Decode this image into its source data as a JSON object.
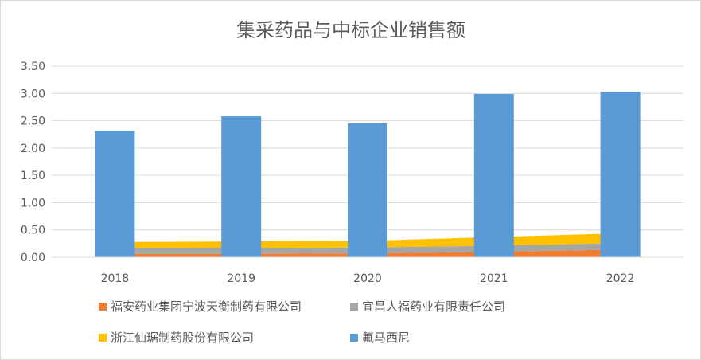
{
  "chart_data": {
    "type": "bar-area-combo",
    "title": "集采药品与中标企业销售额",
    "xlabel": "",
    "ylabel": "",
    "categories": [
      "2018",
      "2019",
      "2020",
      "2021",
      "2022"
    ],
    "ylim": [
      0,
      3.5
    ],
    "yticks": [
      "0.00",
      "0.50",
      "1.00",
      "1.50",
      "2.00",
      "2.50",
      "3.00",
      "3.50"
    ],
    "grid": true,
    "legend_position": "bottom",
    "series": [
      {
        "name": "福安药业集团宁波天衡制药有限公司",
        "type": "stacked-area",
        "color": "#ED7D31",
        "values": [
          0.06,
          0.06,
          0.07,
          0.1,
          0.14
        ]
      },
      {
        "name": "宜昌人福药业有限责任公司",
        "type": "stacked-area",
        "color": "#A5A5A5",
        "values": [
          0.1,
          0.11,
          0.11,
          0.11,
          0.12
        ]
      },
      {
        "name": "浙江仙琚制药股份有限公司",
        "type": "stacked-area",
        "color": "#FFC000",
        "values": [
          0.12,
          0.12,
          0.12,
          0.16,
          0.18
        ]
      },
      {
        "name": "氟马西尼",
        "type": "bar",
        "color": "#5B9BD5",
        "values": [
          2.32,
          2.58,
          2.45,
          2.99,
          3.03
        ]
      }
    ]
  }
}
